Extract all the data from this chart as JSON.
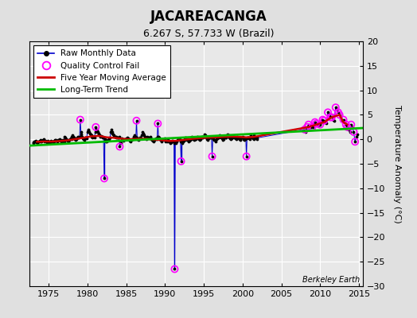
{
  "title": "JACAREACANGA",
  "subtitle": "6.267 S, 57.733 W (Brazil)",
  "ylabel": "Temperature Anomaly (°C)",
  "credit": "Berkeley Earth",
  "xlim": [
    1972.5,
    2015.5
  ],
  "ylim": [
    -30,
    20
  ],
  "yticks": [
    -30,
    -25,
    -20,
    -15,
    -10,
    -5,
    0,
    5,
    10,
    15,
    20
  ],
  "xticks": [
    1975,
    1980,
    1985,
    1990,
    1995,
    2000,
    2005,
    2010,
    2015
  ],
  "bg_outer": "#e0e0e0",
  "bg_inner": "#e8e8e8",
  "grid_color": "#ffffff",
  "raw_color": "#0000cc",
  "qc_color": "#ff00ff",
  "moving_avg_color": "#cc0000",
  "trend_color": "#00bb00",
  "raw_monthly": [
    [
      1973.0,
      -0.8
    ],
    [
      1973.08,
      -0.6
    ],
    [
      1973.17,
      -0.5
    ],
    [
      1973.25,
      -0.4
    ],
    [
      1973.33,
      -0.3
    ],
    [
      1973.42,
      -0.5
    ],
    [
      1973.5,
      -0.6
    ],
    [
      1973.58,
      -0.7
    ],
    [
      1973.67,
      -0.5
    ],
    [
      1973.75,
      -0.4
    ],
    [
      1973.83,
      -0.3
    ],
    [
      1973.92,
      -0.2
    ],
    [
      1974.0,
      -0.4
    ],
    [
      1974.08,
      -0.5
    ],
    [
      1974.17,
      -0.3
    ],
    [
      1974.25,
      -0.1
    ],
    [
      1974.33,
      0.0
    ],
    [
      1974.42,
      -0.2
    ],
    [
      1974.5,
      -0.4
    ],
    [
      1974.58,
      -0.3
    ],
    [
      1974.67,
      -0.5
    ],
    [
      1974.75,
      -0.6
    ],
    [
      1974.83,
      -0.4
    ],
    [
      1974.92,
      -0.3
    ],
    [
      1975.0,
      -0.5
    ],
    [
      1975.08,
      -0.6
    ],
    [
      1975.17,
      -0.7
    ],
    [
      1975.25,
      -0.5
    ],
    [
      1975.33,
      -0.3
    ],
    [
      1975.42,
      -0.4
    ],
    [
      1975.5,
      -0.5
    ],
    [
      1975.58,
      -0.6
    ],
    [
      1975.67,
      -0.4
    ],
    [
      1975.75,
      -0.3
    ],
    [
      1975.83,
      -0.2
    ],
    [
      1975.92,
      -0.1
    ],
    [
      1976.0,
      -0.3
    ],
    [
      1976.08,
      -0.5
    ],
    [
      1976.17,
      -0.4
    ],
    [
      1976.25,
      -0.2
    ],
    [
      1976.33,
      -0.1
    ],
    [
      1976.42,
      0.0
    ],
    [
      1976.5,
      -0.2
    ],
    [
      1976.58,
      -0.3
    ],
    [
      1976.67,
      -0.5
    ],
    [
      1976.75,
      -0.4
    ],
    [
      1976.83,
      -0.2
    ],
    [
      1976.92,
      -0.1
    ],
    [
      1977.0,
      -0.5
    ],
    [
      1977.08,
      0.5
    ],
    [
      1977.17,
      0.3
    ],
    [
      1977.25,
      0.1
    ],
    [
      1977.33,
      -0.1
    ],
    [
      1977.42,
      -0.2
    ],
    [
      1977.5,
      -0.3
    ],
    [
      1977.58,
      -0.4
    ],
    [
      1977.67,
      -0.2
    ],
    [
      1977.75,
      0.0
    ],
    [
      1977.83,
      0.2
    ],
    [
      1977.92,
      0.1
    ],
    [
      1978.0,
      0.5
    ],
    [
      1978.08,
      0.8
    ],
    [
      1978.17,
      0.6
    ],
    [
      1978.25,
      0.4
    ],
    [
      1978.33,
      0.2
    ],
    [
      1978.42,
      0.0
    ],
    [
      1978.5,
      -0.1
    ],
    [
      1978.58,
      0.1
    ],
    [
      1978.67,
      0.3
    ],
    [
      1978.75,
      0.5
    ],
    [
      1978.83,
      0.4
    ],
    [
      1978.92,
      0.3
    ],
    [
      1979.0,
      0.6
    ],
    [
      1979.08,
      4.0
    ],
    [
      1979.17,
      1.5
    ],
    [
      1979.25,
      1.0
    ],
    [
      1979.33,
      0.5
    ],
    [
      1979.42,
      0.2
    ],
    [
      1979.5,
      0.0
    ],
    [
      1979.58,
      -0.1
    ],
    [
      1979.67,
      0.2
    ],
    [
      1979.75,
      0.4
    ],
    [
      1979.83,
      0.3
    ],
    [
      1979.92,
      0.2
    ],
    [
      1980.0,
      1.5
    ],
    [
      1980.08,
      2.0
    ],
    [
      1980.17,
      1.8
    ],
    [
      1980.25,
      1.5
    ],
    [
      1980.33,
      1.2
    ],
    [
      1980.42,
      1.0
    ],
    [
      1980.5,
      0.8
    ],
    [
      1980.58,
      0.6
    ],
    [
      1980.67,
      0.4
    ],
    [
      1980.75,
      0.5
    ],
    [
      1980.83,
      0.6
    ],
    [
      1980.92,
      0.4
    ],
    [
      1981.0,
      1.5
    ],
    [
      1981.08,
      2.5
    ],
    [
      1981.17,
      2.0
    ],
    [
      1981.25,
      1.8
    ],
    [
      1981.33,
      1.5
    ],
    [
      1981.42,
      1.2
    ],
    [
      1981.5,
      1.0
    ],
    [
      1981.58,
      0.8
    ],
    [
      1981.67,
      0.6
    ],
    [
      1981.75,
      0.7
    ],
    [
      1981.83,
      0.5
    ],
    [
      1981.92,
      0.3
    ],
    [
      1982.0,
      0.5
    ],
    [
      1982.08,
      0.3
    ],
    [
      1982.17,
      -8.0
    ],
    [
      1982.25,
      0.1
    ],
    [
      1982.33,
      -0.2
    ],
    [
      1982.42,
      -0.4
    ],
    [
      1982.5,
      -0.5
    ],
    [
      1982.58,
      -0.3
    ],
    [
      1982.67,
      -0.1
    ],
    [
      1982.75,
      0.1
    ],
    [
      1982.83,
      0.2
    ],
    [
      1982.92,
      0.3
    ],
    [
      1983.0,
      1.5
    ],
    [
      1983.08,
      2.0
    ],
    [
      1983.17,
      1.5
    ],
    [
      1983.25,
      1.2
    ],
    [
      1983.33,
      1.0
    ],
    [
      1983.42,
      0.8
    ],
    [
      1983.5,
      0.6
    ],
    [
      1983.58,
      0.5
    ],
    [
      1983.67,
      0.4
    ],
    [
      1983.75,
      0.5
    ],
    [
      1983.83,
      0.4
    ],
    [
      1983.92,
      0.3
    ],
    [
      1984.0,
      0.3
    ],
    [
      1984.08,
      0.5
    ],
    [
      1984.17,
      -1.5
    ],
    [
      1984.25,
      -0.5
    ],
    [
      1984.33,
      -0.8
    ],
    [
      1984.42,
      0.2
    ],
    [
      1984.5,
      0.1
    ],
    [
      1984.58,
      -0.1
    ],
    [
      1984.67,
      -0.3
    ],
    [
      1984.75,
      -0.2
    ],
    [
      1984.83,
      0.0
    ],
    [
      1984.92,
      0.1
    ],
    [
      1985.0,
      0.0
    ],
    [
      1985.08,
      0.2
    ],
    [
      1985.17,
      0.4
    ],
    [
      1985.25,
      0.2
    ],
    [
      1985.33,
      0.0
    ],
    [
      1985.42,
      -0.2
    ],
    [
      1985.5,
      -0.3
    ],
    [
      1985.58,
      -0.4
    ],
    [
      1985.67,
      -0.2
    ],
    [
      1985.75,
      0.0
    ],
    [
      1985.83,
      0.1
    ],
    [
      1985.92,
      0.2
    ],
    [
      1986.0,
      0.5
    ],
    [
      1986.08,
      0.8
    ],
    [
      1986.17,
      0.6
    ],
    [
      1986.25,
      0.4
    ],
    [
      1986.33,
      3.8
    ],
    [
      1986.42,
      0.3
    ],
    [
      1986.5,
      0.1
    ],
    [
      1986.58,
      -0.1
    ],
    [
      1986.67,
      0.1
    ],
    [
      1986.75,
      0.3
    ],
    [
      1986.83,
      0.4
    ],
    [
      1986.92,
      0.2
    ],
    [
      1987.0,
      0.8
    ],
    [
      1987.08,
      1.5
    ],
    [
      1987.17,
      1.2
    ],
    [
      1987.25,
      1.0
    ],
    [
      1987.33,
      0.8
    ],
    [
      1987.42,
      0.5
    ],
    [
      1987.5,
      0.3
    ],
    [
      1987.58,
      0.1
    ],
    [
      1987.67,
      0.3
    ],
    [
      1987.75,
      0.5
    ],
    [
      1987.83,
      0.4
    ],
    [
      1987.92,
      0.3
    ],
    [
      1988.0,
      0.3
    ],
    [
      1988.08,
      0.5
    ],
    [
      1988.17,
      0.3
    ],
    [
      1988.25,
      0.0
    ],
    [
      1988.33,
      -0.2
    ],
    [
      1988.42,
      -0.3
    ],
    [
      1988.5,
      -0.5
    ],
    [
      1988.58,
      -0.3
    ],
    [
      1988.67,
      -0.1
    ],
    [
      1988.75,
      0.1
    ],
    [
      1988.83,
      0.2
    ],
    [
      1988.92,
      0.1
    ],
    [
      1989.0,
      0.5
    ],
    [
      1989.08,
      3.2
    ],
    [
      1989.17,
      0.5
    ],
    [
      1989.25,
      0.3
    ],
    [
      1989.33,
      0.1
    ],
    [
      1989.42,
      -0.1
    ],
    [
      1989.5,
      -0.2
    ],
    [
      1989.58,
      -0.4
    ],
    [
      1989.67,
      -0.2
    ],
    [
      1989.75,
      0.0
    ],
    [
      1989.83,
      0.1
    ],
    [
      1989.92,
      0.2
    ],
    [
      1990.0,
      -0.2
    ],
    [
      1990.08,
      -0.5
    ],
    [
      1990.17,
      -0.3
    ],
    [
      1990.25,
      -0.5
    ],
    [
      1990.33,
      0.0
    ],
    [
      1990.42,
      -0.3
    ],
    [
      1990.5,
      -0.5
    ],
    [
      1990.58,
      -0.4
    ],
    [
      1990.67,
      -0.8
    ],
    [
      1990.75,
      -0.6
    ],
    [
      1990.83,
      -0.4
    ],
    [
      1990.92,
      -0.3
    ],
    [
      1991.0,
      -0.3
    ],
    [
      1991.08,
      -0.5
    ],
    [
      1991.17,
      -0.8
    ],
    [
      1991.25,
      -26.5
    ],
    [
      1991.33,
      -0.5
    ],
    [
      1991.42,
      -0.7
    ],
    [
      1991.5,
      -0.4
    ],
    [
      1991.58,
      -0.2
    ],
    [
      1991.67,
      0.0
    ],
    [
      1991.75,
      0.2
    ],
    [
      1991.83,
      0.1
    ],
    [
      1991.92,
      0.0
    ],
    [
      1992.0,
      -0.5
    ],
    [
      1992.08,
      -4.5
    ],
    [
      1992.17,
      -0.5
    ],
    [
      1992.25,
      -0.8
    ],
    [
      1992.33,
      -0.5
    ],
    [
      1992.42,
      -0.3
    ],
    [
      1992.5,
      -0.1
    ],
    [
      1992.58,
      0.1
    ],
    [
      1992.67,
      0.3
    ],
    [
      1992.75,
      0.1
    ],
    [
      1992.83,
      -0.1
    ],
    [
      1992.92,
      0.0
    ],
    [
      1993.0,
      -0.3
    ],
    [
      1993.08,
      -0.5
    ],
    [
      1993.17,
      -0.3
    ],
    [
      1993.25,
      -0.1
    ],
    [
      1993.33,
      0.1
    ],
    [
      1993.42,
      0.3
    ],
    [
      1993.5,
      0.5
    ],
    [
      1993.58,
      0.3
    ],
    [
      1993.67,
      0.1
    ],
    [
      1993.75,
      -0.1
    ],
    [
      1993.83,
      0.0
    ],
    [
      1993.92,
      0.1
    ],
    [
      1994.0,
      0.2
    ],
    [
      1994.08,
      0.4
    ],
    [
      1994.17,
      0.6
    ],
    [
      1994.25,
      0.4
    ],
    [
      1994.33,
      0.2
    ],
    [
      1994.42,
      0.0
    ],
    [
      1994.5,
      -0.1
    ],
    [
      1994.58,
      0.1
    ],
    [
      1994.67,
      0.3
    ],
    [
      1994.75,
      0.5
    ],
    [
      1994.83,
      0.4
    ],
    [
      1994.92,
      0.3
    ],
    [
      1995.0,
      0.5
    ],
    [
      1995.08,
      1.0
    ],
    [
      1995.17,
      0.8
    ],
    [
      1995.25,
      0.5
    ],
    [
      1995.33,
      0.3
    ],
    [
      1995.42,
      0.1
    ],
    [
      1995.5,
      -0.1
    ],
    [
      1995.58,
      0.2
    ],
    [
      1995.67,
      0.4
    ],
    [
      1995.75,
      0.6
    ],
    [
      1995.83,
      0.4
    ],
    [
      1995.92,
      0.3
    ],
    [
      1996.0,
      0.3
    ],
    [
      1996.08,
      -3.5
    ],
    [
      1996.17,
      0.3
    ],
    [
      1996.25,
      0.1
    ],
    [
      1996.33,
      -0.1
    ],
    [
      1996.42,
      -0.2
    ],
    [
      1996.5,
      -0.4
    ],
    [
      1996.58,
      -0.2
    ],
    [
      1996.67,
      0.0
    ],
    [
      1996.75,
      0.2
    ],
    [
      1996.83,
      0.3
    ],
    [
      1996.92,
      0.4
    ],
    [
      1997.0,
      0.5
    ],
    [
      1997.08,
      0.8
    ],
    [
      1997.17,
      0.6
    ],
    [
      1997.25,
      0.4
    ],
    [
      1997.33,
      0.2
    ],
    [
      1997.42,
      0.0
    ],
    [
      1997.5,
      -0.1
    ],
    [
      1997.58,
      0.1
    ],
    [
      1997.67,
      0.3
    ],
    [
      1997.75,
      0.5
    ],
    [
      1997.83,
      0.4
    ],
    [
      1997.92,
      0.3
    ],
    [
      1998.0,
      0.8
    ],
    [
      1998.08,
      1.0
    ],
    [
      1998.17,
      0.8
    ],
    [
      1998.25,
      0.6
    ],
    [
      1998.33,
      0.4
    ],
    [
      1998.42,
      0.2
    ],
    [
      1998.5,
      0.0
    ],
    [
      1998.58,
      0.2
    ],
    [
      1998.67,
      0.4
    ],
    [
      1998.75,
      0.6
    ],
    [
      1998.83,
      0.5
    ],
    [
      1998.92,
      0.4
    ],
    [
      1999.0,
      0.3
    ],
    [
      1999.08,
      0.2
    ],
    [
      1999.17,
      0.1
    ],
    [
      1999.25,
      0.3
    ],
    [
      1999.33,
      0.5
    ],
    [
      1999.42,
      0.4
    ],
    [
      1999.5,
      0.2
    ],
    [
      1999.58,
      0.0
    ],
    [
      1999.67,
      -0.1
    ],
    [
      1999.75,
      0.1
    ],
    [
      1999.83,
      0.3
    ],
    [
      1999.92,
      0.4
    ],
    [
      2000.0,
      0.5
    ],
    [
      2000.08,
      0.3
    ],
    [
      2000.17,
      0.1
    ],
    [
      2000.25,
      -0.1
    ],
    [
      2000.33,
      0.0
    ],
    [
      2000.42,
      0.2
    ],
    [
      2000.5,
      -3.5
    ],
    [
      2000.58,
      0.2
    ],
    [
      2000.67,
      0.4
    ],
    [
      2000.75,
      0.3
    ],
    [
      2000.83,
      0.2
    ],
    [
      2000.92,
      0.1
    ],
    [
      2001.0,
      0.5
    ],
    [
      2001.08,
      0.8
    ],
    [
      2001.17,
      0.6
    ],
    [
      2001.25,
      0.4
    ],
    [
      2001.33,
      0.2
    ],
    [
      2001.42,
      0.0
    ],
    [
      2001.5,
      0.8
    ],
    [
      2001.58,
      0.6
    ],
    [
      2001.67,
      0.4
    ],
    [
      2001.75,
      0.2
    ],
    [
      2001.83,
      0.1
    ],
    [
      2001.92,
      0.3
    ],
    [
      2008.0,
      2.0
    ],
    [
      2008.17,
      1.5
    ],
    [
      2008.33,
      2.5
    ],
    [
      2008.5,
      3.0
    ],
    [
      2008.67,
      2.8
    ],
    [
      2008.83,
      2.5
    ],
    [
      2009.0,
      2.5
    ],
    [
      2009.17,
      3.0
    ],
    [
      2009.33,
      3.5
    ],
    [
      2009.5,
      3.2
    ],
    [
      2009.67,
      2.8
    ],
    [
      2009.83,
      3.0
    ],
    [
      2010.0,
      3.0
    ],
    [
      2010.17,
      3.5
    ],
    [
      2010.33,
      4.0
    ],
    [
      2010.5,
      3.8
    ],
    [
      2010.67,
      3.5
    ],
    [
      2010.83,
      3.2
    ],
    [
      2011.0,
      5.5
    ],
    [
      2011.17,
      5.0
    ],
    [
      2011.33,
      4.5
    ],
    [
      2011.5,
      4.5
    ],
    [
      2011.67,
      4.0
    ],
    [
      2011.83,
      3.8
    ],
    [
      2012.0,
      6.5
    ],
    [
      2012.17,
      6.0
    ],
    [
      2012.33,
      5.5
    ],
    [
      2012.5,
      5.0
    ],
    [
      2012.67,
      4.5
    ],
    [
      2012.83,
      4.0
    ],
    [
      2013.0,
      4.0
    ],
    [
      2013.17,
      3.5
    ],
    [
      2013.33,
      3.0
    ],
    [
      2013.5,
      2.5
    ],
    [
      2013.67,
      2.0
    ],
    [
      2013.83,
      1.5
    ],
    [
      2014.0,
      3.0
    ],
    [
      2014.17,
      2.5
    ],
    [
      2014.33,
      1.5
    ],
    [
      2014.5,
      -0.5
    ],
    [
      2014.67,
      0.5
    ],
    [
      2014.83,
      1.0
    ]
  ],
  "qc_fail_points": [
    [
      1979.08,
      4.0
    ],
    [
      1981.08,
      2.5
    ],
    [
      1982.17,
      -8.0
    ],
    [
      1984.17,
      -1.5
    ],
    [
      1986.33,
      3.8
    ],
    [
      1989.08,
      3.2
    ],
    [
      1991.25,
      -26.5
    ],
    [
      1992.08,
      -4.5
    ],
    [
      1996.08,
      -3.5
    ],
    [
      2000.5,
      -3.5
    ],
    [
      2008.0,
      2.0
    ],
    [
      2008.33,
      2.5
    ],
    [
      2008.5,
      3.0
    ],
    [
      2009.0,
      2.5
    ],
    [
      2009.33,
      3.5
    ],
    [
      2009.5,
      3.2
    ],
    [
      2010.0,
      3.0
    ],
    [
      2010.33,
      4.0
    ],
    [
      2010.5,
      3.8
    ],
    [
      2011.0,
      5.5
    ],
    [
      2011.33,
      4.5
    ],
    [
      2011.5,
      4.5
    ],
    [
      2012.0,
      6.5
    ],
    [
      2012.33,
      5.5
    ],
    [
      2012.5,
      5.0
    ],
    [
      2013.0,
      4.0
    ],
    [
      2013.33,
      3.0
    ],
    [
      2013.5,
      2.5
    ],
    [
      2014.0,
      3.0
    ],
    [
      2014.33,
      1.5
    ],
    [
      2014.5,
      -0.5
    ]
  ],
  "moving_avg": [
    [
      1973.5,
      -0.5
    ],
    [
      1974.5,
      -0.45
    ],
    [
      1975.5,
      -0.45
    ],
    [
      1976.5,
      -0.35
    ],
    [
      1977.5,
      -0.2
    ],
    [
      1978.5,
      0.05
    ],
    [
      1979.5,
      0.3
    ],
    [
      1980.5,
      0.6
    ],
    [
      1981.5,
      0.7
    ],
    [
      1982.5,
      0.4
    ],
    [
      1983.5,
      0.3
    ],
    [
      1984.5,
      0.1
    ],
    [
      1985.5,
      0.0
    ],
    [
      1986.5,
      0.1
    ],
    [
      1987.5,
      0.1
    ],
    [
      1988.5,
      -0.05
    ],
    [
      1989.5,
      -0.15
    ],
    [
      1990.5,
      -0.35
    ],
    [
      1991.5,
      -0.3
    ],
    [
      1992.5,
      -0.1
    ],
    [
      1993.5,
      0.1
    ],
    [
      1994.5,
      0.25
    ],
    [
      1995.5,
      0.35
    ],
    [
      1996.5,
      0.4
    ],
    [
      1997.5,
      0.5
    ],
    [
      1998.5,
      0.55
    ],
    [
      1999.5,
      0.5
    ],
    [
      2000.5,
      0.4
    ],
    [
      2001.5,
      0.5
    ],
    [
      2008.5,
      2.5
    ],
    [
      2009.5,
      3.0
    ],
    [
      2010.5,
      3.5
    ],
    [
      2011.5,
      4.5
    ],
    [
      2012.5,
      5.0
    ],
    [
      2013.0,
      3.5
    ],
    [
      2013.5,
      3.0
    ]
  ],
  "trend_line": [
    [
      1972.5,
      -1.3
    ],
    [
      2015.5,
      2.3
    ]
  ],
  "spike_lines": [
    [
      1982.17,
      0.3,
      -8.0
    ],
    [
      1991.25,
      -0.3,
      -26.5
    ],
    [
      1992.08,
      -0.5,
      -4.5
    ]
  ]
}
